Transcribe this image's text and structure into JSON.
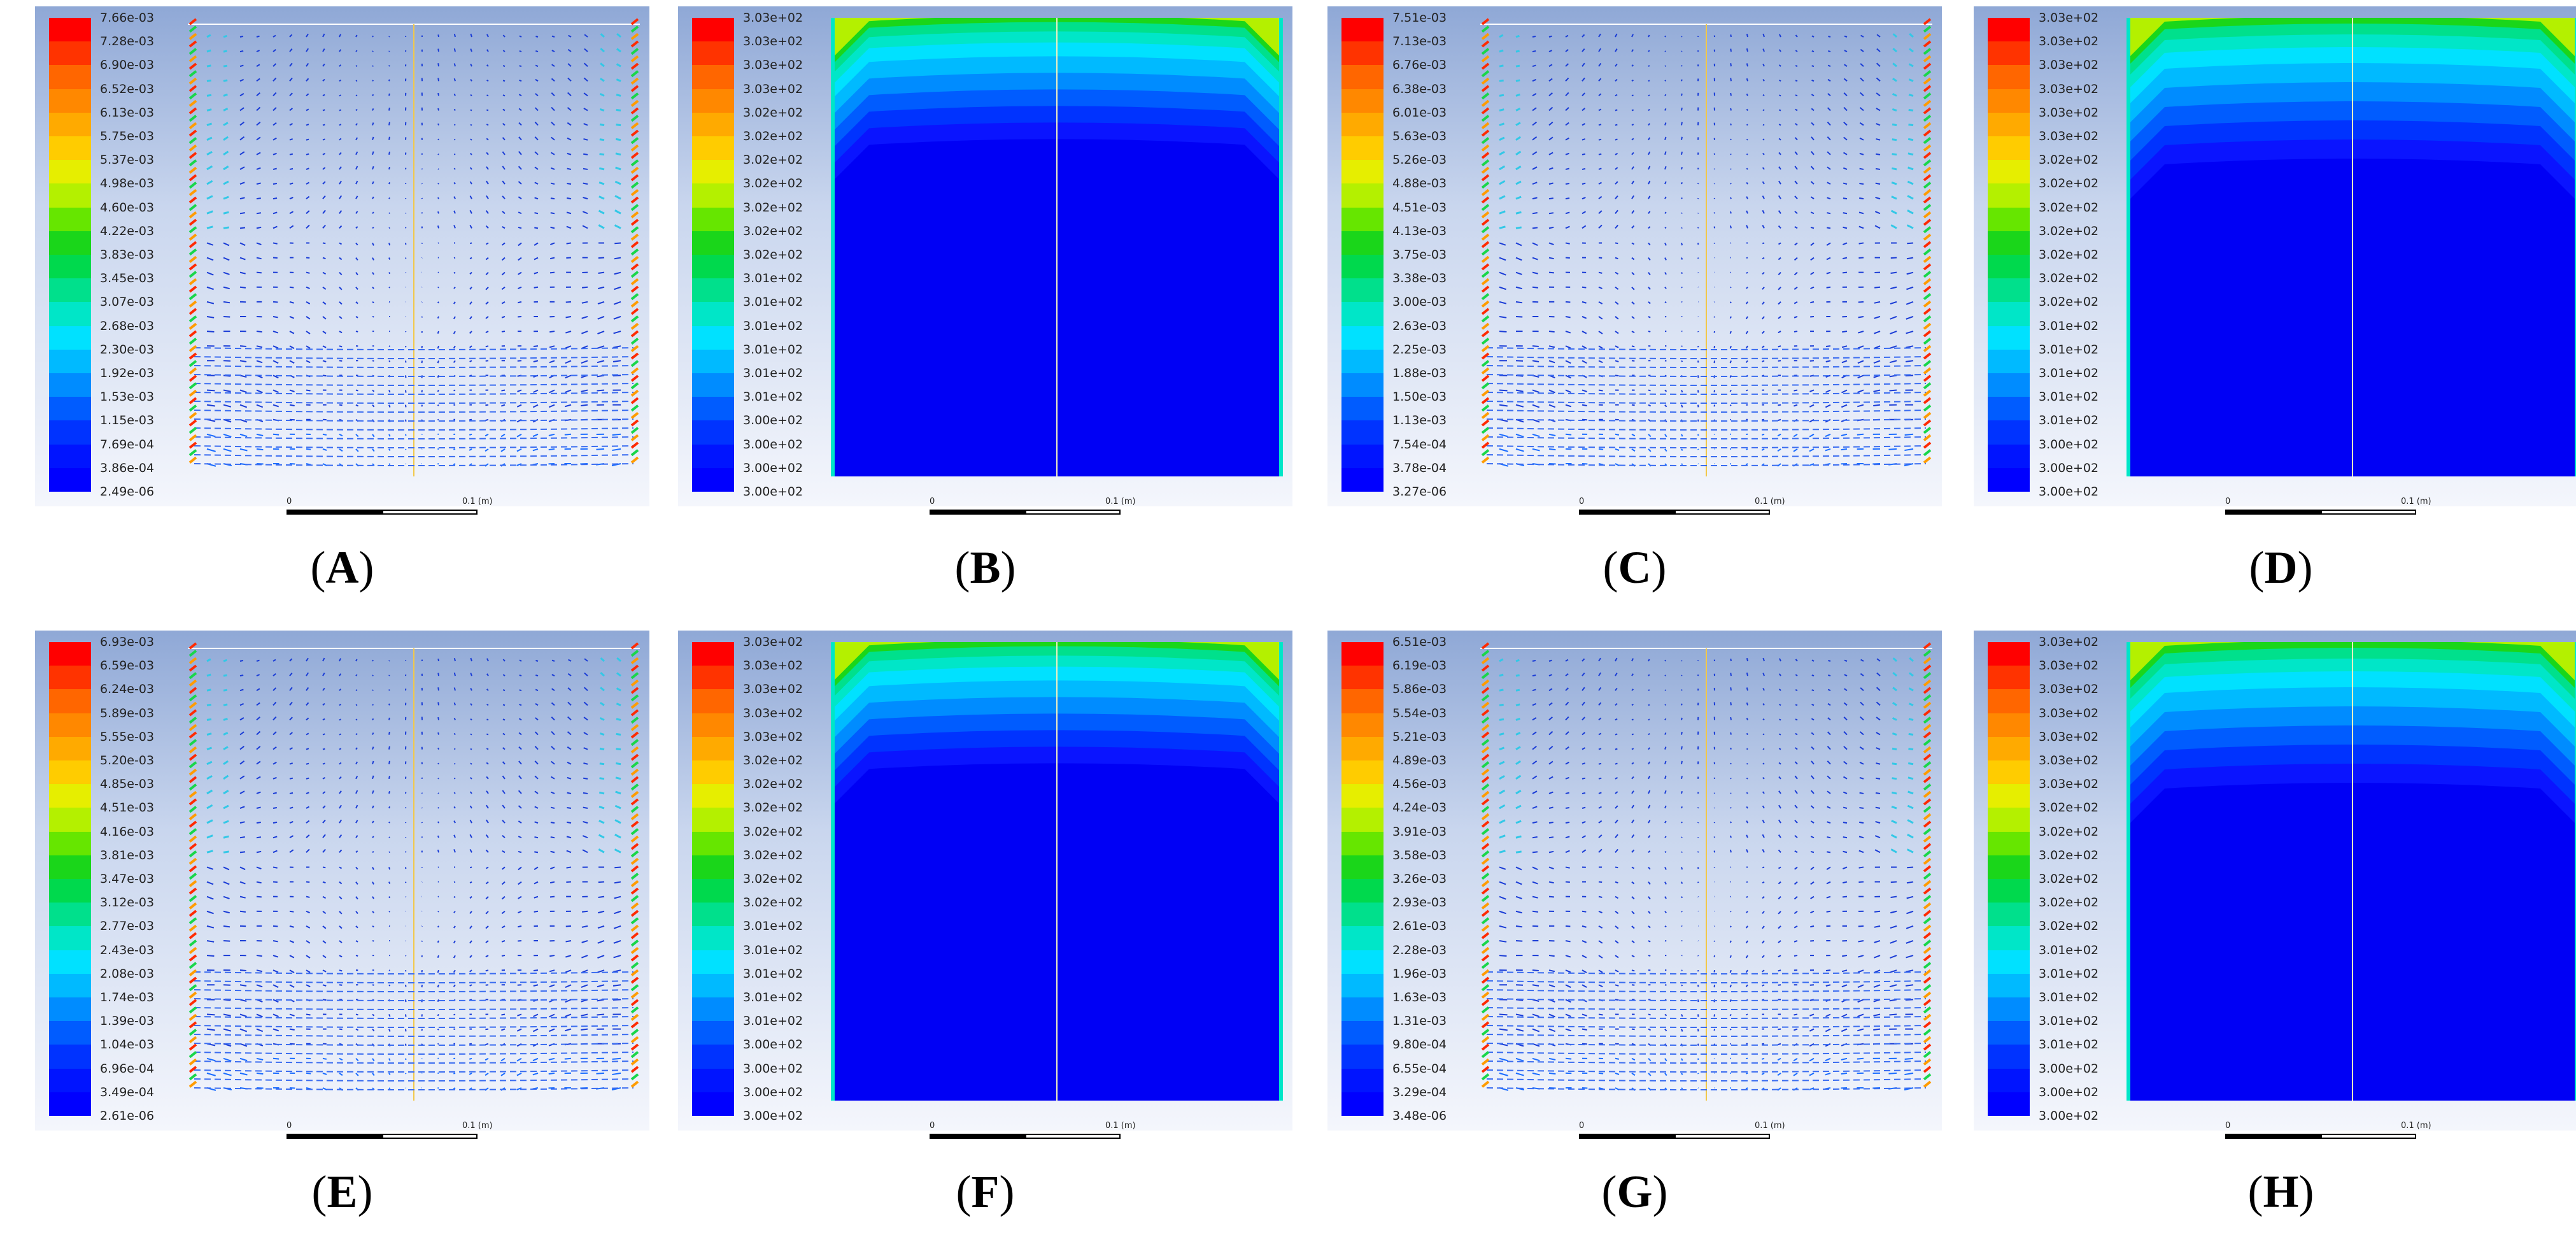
{
  "figure": {
    "panels": [
      {
        "id": "A",
        "caption_open": "(",
        "caption_letter": "A",
        "caption_close": ")",
        "field": "velocity",
        "colorbar": [
          "7.66e-03",
          "7.28e-03",
          "6.90e-03",
          "6.52e-03",
          "6.13e-03",
          "5.75e-03",
          "5.37e-03",
          "4.98e-03",
          "4.60e-03",
          "4.22e-03",
          "3.83e-03",
          "3.45e-03",
          "3.07e-03",
          "2.68e-03",
          "2.30e-03",
          "1.92e-03",
          "1.53e-03",
          "1.15e-03",
          "7.69e-04",
          "3.86e-04",
          "2.49e-06"
        ],
        "scale_start": "0",
        "scale_end": "0.1 (m)"
      },
      {
        "id": "B",
        "caption_open": "(",
        "caption_letter": "B",
        "caption_close": ")",
        "field": "temperature",
        "colorbar": [
          "3.03e+02",
          "3.03e+02",
          "3.03e+02",
          "3.03e+02",
          "3.02e+02",
          "3.02e+02",
          "3.02e+02",
          "3.02e+02",
          "3.02e+02",
          "3.02e+02",
          "3.02e+02",
          "3.01e+02",
          "3.01e+02",
          "3.01e+02",
          "3.01e+02",
          "3.01e+02",
          "3.01e+02",
          "3.00e+02",
          "3.00e+02",
          "3.00e+02",
          "3.00e+02"
        ],
        "scale_start": "0",
        "scale_end": "0.1 (m)"
      },
      {
        "id": "C",
        "caption_open": "(",
        "caption_letter": "C",
        "caption_close": ")",
        "field": "velocity",
        "colorbar": [
          "7.51e-03",
          "7.13e-03",
          "6.76e-03",
          "6.38e-03",
          "6.01e-03",
          "5.63e-03",
          "5.26e-03",
          "4.88e-03",
          "4.51e-03",
          "4.13e-03",
          "3.75e-03",
          "3.38e-03",
          "3.00e-03",
          "2.63e-03",
          "2.25e-03",
          "1.88e-03",
          "1.50e-03",
          "1.13e-03",
          "7.54e-04",
          "3.78e-04",
          "3.27e-06"
        ],
        "scale_start": "0",
        "scale_end": "0.1 (m)"
      },
      {
        "id": "D",
        "caption_open": "(",
        "caption_letter": "D",
        "caption_close": ")",
        "field": "temperature",
        "colorbar": [
          "3.03e+02",
          "3.03e+02",
          "3.03e+02",
          "3.03e+02",
          "3.03e+02",
          "3.03e+02",
          "3.02e+02",
          "3.02e+02",
          "3.02e+02",
          "3.02e+02",
          "3.02e+02",
          "3.02e+02",
          "3.02e+02",
          "3.01e+02",
          "3.01e+02",
          "3.01e+02",
          "3.01e+02",
          "3.01e+02",
          "3.00e+02",
          "3.00e+02",
          "3.00e+02"
        ],
        "scale_start": "0",
        "scale_end": "0.1 (m)"
      },
      {
        "id": "E",
        "caption_open": "(",
        "caption_letter": "E",
        "caption_close": ")",
        "field": "velocity",
        "colorbar": [
          "6.93e-03",
          "6.59e-03",
          "6.24e-03",
          "5.89e-03",
          "5.55e-03",
          "5.20e-03",
          "4.85e-03",
          "4.51e-03",
          "4.16e-03",
          "3.81e-03",
          "3.47e-03",
          "3.12e-03",
          "2.77e-03",
          "2.43e-03",
          "2.08e-03",
          "1.74e-03",
          "1.39e-03",
          "1.04e-03",
          "6.96e-04",
          "3.49e-04",
          "2.61e-06"
        ],
        "scale_start": "0",
        "scale_end": "0.1 (m)"
      },
      {
        "id": "F",
        "caption_open": "(",
        "caption_letter": "F",
        "caption_close": ")",
        "field": "temperature",
        "colorbar": [
          "3.03e+02",
          "3.03e+02",
          "3.03e+02",
          "3.03e+02",
          "3.03e+02",
          "3.02e+02",
          "3.02e+02",
          "3.02e+02",
          "3.02e+02",
          "3.02e+02",
          "3.02e+02",
          "3.02e+02",
          "3.01e+02",
          "3.01e+02",
          "3.01e+02",
          "3.01e+02",
          "3.01e+02",
          "3.00e+02",
          "3.00e+02",
          "3.00e+02",
          "3.00e+02"
        ],
        "scale_start": "0",
        "scale_end": "0.1 (m)"
      },
      {
        "id": "G",
        "caption_open": "(",
        "caption_letter": "G",
        "caption_close": ")",
        "field": "velocity",
        "colorbar": [
          "6.51e-03",
          "6.19e-03",
          "5.86e-03",
          "5.54e-03",
          "5.21e-03",
          "4.89e-03",
          "4.56e-03",
          "4.24e-03",
          "3.91e-03",
          "3.58e-03",
          "3.26e-03",
          "2.93e-03",
          "2.61e-03",
          "2.28e-03",
          "1.96e-03",
          "1.63e-03",
          "1.31e-03",
          "9.80e-04",
          "6.55e-04",
          "3.29e-04",
          "3.48e-06"
        ],
        "scale_start": "0",
        "scale_end": "0.1 (m)"
      },
      {
        "id": "H",
        "caption_open": "(",
        "caption_letter": "H",
        "caption_close": ")",
        "field": "temperature",
        "colorbar": [
          "3.03e+02",
          "3.03e+02",
          "3.03e+02",
          "3.03e+02",
          "3.03e+02",
          "3.03e+02",
          "3.03e+02",
          "3.02e+02",
          "3.02e+02",
          "3.02e+02",
          "3.02e+02",
          "3.02e+02",
          "3.02e+02",
          "3.01e+02",
          "3.01e+02",
          "3.01e+02",
          "3.01e+02",
          "3.01e+02",
          "3.00e+02",
          "3.00e+02",
          "3.00e+02"
        ],
        "scale_start": "0",
        "scale_end": "0.1 (m)"
      }
    ],
    "palette": [
      "#ff0000",
      "#ff3300",
      "#ff6600",
      "#ff8800",
      "#ffaa00",
      "#ffcc00",
      "#e6ee00",
      "#b4f000",
      "#66e600",
      "#1ad61a",
      "#00d94d",
      "#00e08c",
      "#00e6c8",
      "#00e1ff",
      "#00baff",
      "#008cff",
      "#005cff",
      "#0033ff",
      "#0014ff",
      "#0000ff"
    ]
  }
}
